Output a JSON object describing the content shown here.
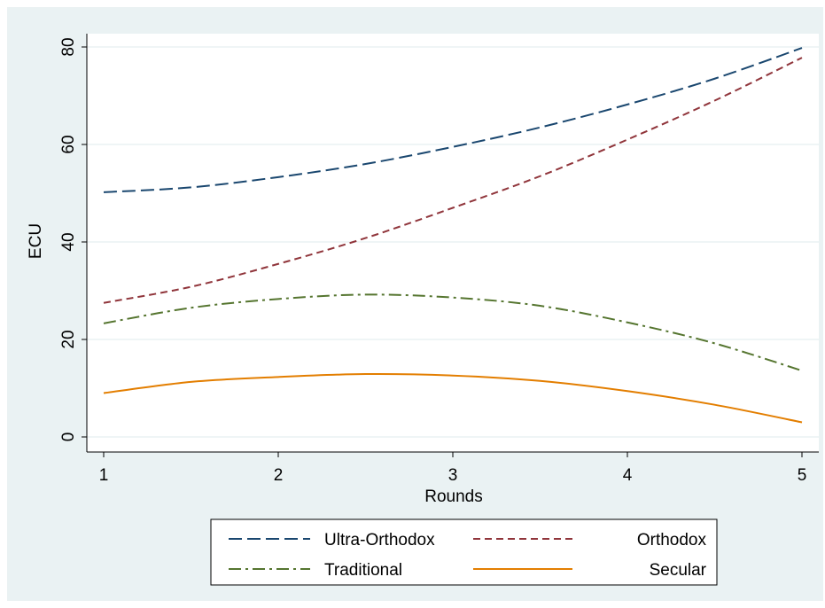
{
  "chart_data": {
    "type": "line",
    "title": "",
    "xlabel": "Rounds",
    "ylabel": "ECU",
    "xlim": [
      1,
      5
    ],
    "ylim": [
      0,
      80
    ],
    "xticks": [
      1,
      2,
      3,
      4,
      5
    ],
    "yticks": [
      0,
      20,
      40,
      60,
      80
    ],
    "grid": true,
    "legend_position": "bottom",
    "series": [
      {
        "name": "Ultra-Orthodox",
        "color": "#1a476f",
        "line_style": "long-dash",
        "x": [
          1,
          1.5,
          2,
          2.5,
          3,
          3.5,
          4,
          4.5,
          5
        ],
        "values": [
          50.2,
          51.2,
          53.3,
          56.0,
          59.5,
          63.5,
          68.2,
          73.5,
          79.8
        ]
      },
      {
        "name": "Orthodox",
        "color": "#90353b",
        "line_style": "short-dash",
        "x": [
          1,
          1.5,
          2,
          2.5,
          3,
          3.5,
          4,
          4.5,
          5
        ],
        "values": [
          27.5,
          30.8,
          35.5,
          40.8,
          47.0,
          53.5,
          61.0,
          69.0,
          77.8
        ]
      },
      {
        "name": "Traditional",
        "color": "#55752f",
        "line_style": "dash-dot",
        "x": [
          1,
          1.5,
          2,
          2.5,
          3,
          3.5,
          4,
          4.5,
          5
        ],
        "values": [
          23.3,
          26.5,
          28.3,
          29.2,
          28.6,
          26.9,
          23.5,
          19.2,
          13.6
        ]
      },
      {
        "name": "Secular",
        "color": "#e37e00",
        "line_style": "solid",
        "x": [
          1,
          1.5,
          2,
          2.5,
          3,
          3.5,
          4,
          4.5,
          5
        ],
        "values": [
          9.0,
          11.3,
          12.3,
          12.9,
          12.6,
          11.5,
          9.4,
          6.6,
          3.0
        ]
      }
    ]
  }
}
